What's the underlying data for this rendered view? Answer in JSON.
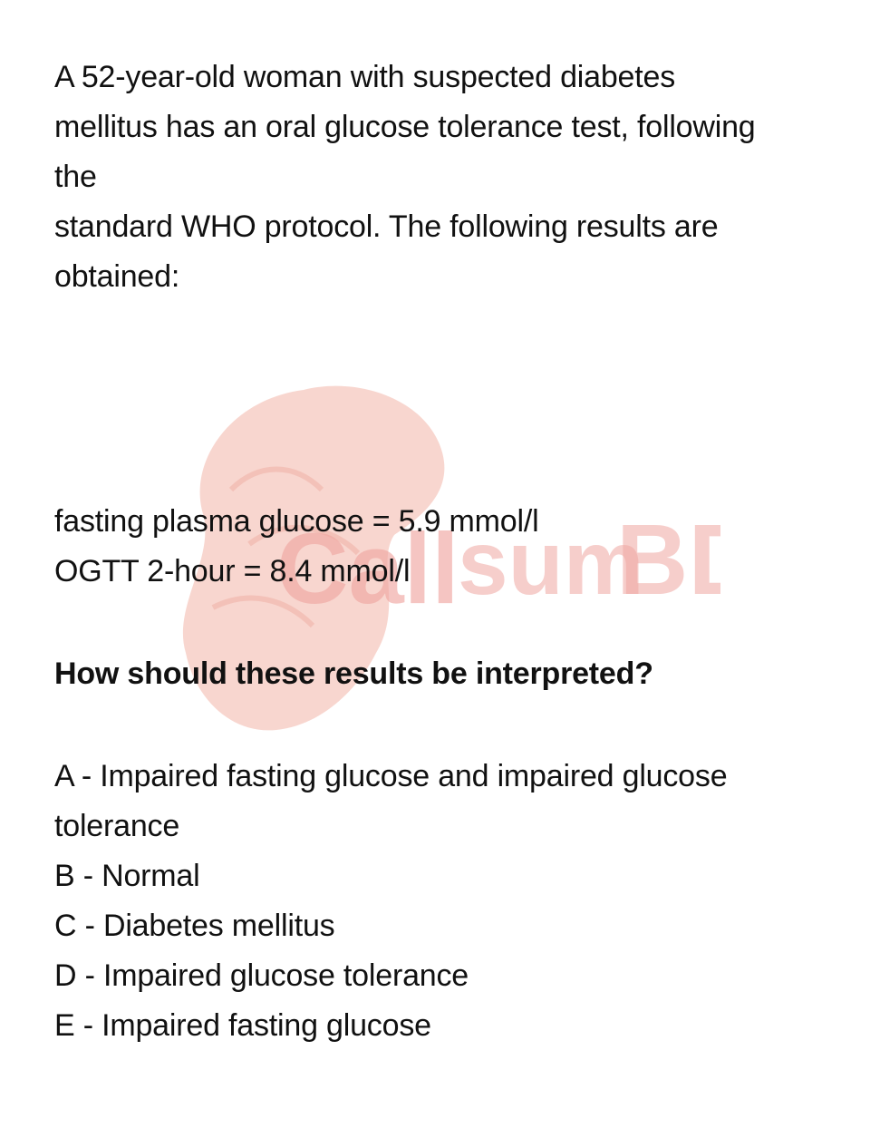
{
  "watermark": {
    "text_call": "Call",
    "text_sum": "sum",
    "text_bd": "BD",
    "brain_color": "#f6c8bf",
    "text_color": "#f0a7a2"
  },
  "stem": {
    "lines": [
      "A 52-year-old woman with suspected diabetes",
      "mellitus has an oral glucose tolerance test, following",
      "the",
      "standard WHO protocol. The following results are",
      "obtained:"
    ]
  },
  "results": {
    "fasting": "fasting plasma glucose = 5.9 mmol/l",
    "ogtt": "OGTT 2-hour = 8.4 mmol/l"
  },
  "question": "How should these results be interpreted?",
  "options": [
    "A - Impaired fasting glucose and impaired glucose",
    "tolerance",
    "B - Normal",
    "C - Diabetes mellitus",
    "D - Impaired glucose tolerance",
    "E - Impaired fasting glucose"
  ]
}
